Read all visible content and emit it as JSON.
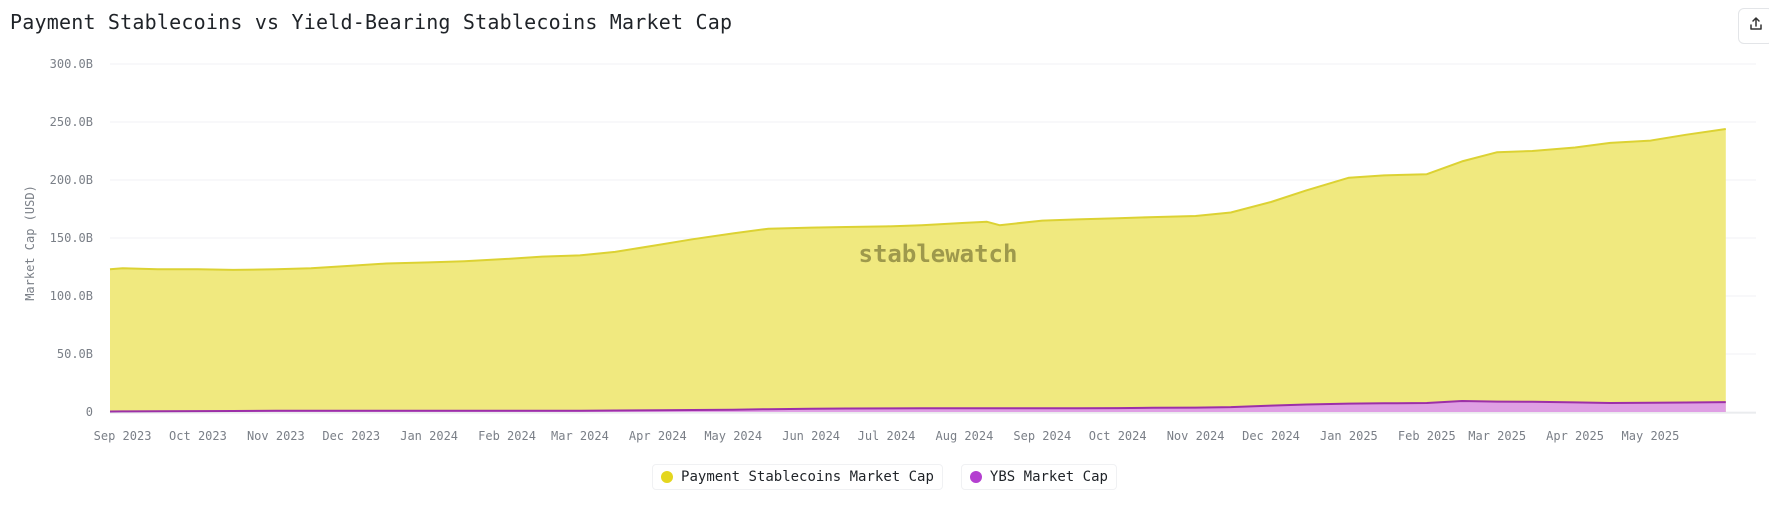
{
  "title": "Payment Stablecoins vs Yield-Bearing Stablecoins Market Cap",
  "share_icon": "share-icon",
  "watermark": "stablewatch",
  "colors": {
    "payment_line": "#dcd233",
    "payment_fill": "#f0e97f",
    "ybs_line": "#9c2fa8",
    "ybs_fill": "#dd9bea",
    "legend_payment": "#e4d61f",
    "legend_ybs": "#b43fd0",
    "grid": "#f1f2f4",
    "tick_text": "#7a7f87"
  },
  "chart_data": {
    "type": "area",
    "title": "Payment Stablecoins vs Yield-Bearing Stablecoins Market Cap",
    "xlabel": "",
    "ylabel": "Market Cap (USD)",
    "ylim": [
      0,
      300
    ],
    "y_unit": "B",
    "y_ticks": [
      "0",
      "50.0B",
      "100.0B",
      "150.0B",
      "200.0B",
      "250.0B",
      "300.0B"
    ],
    "x_ticks": [
      "Sep 2023",
      "Oct 2023",
      "Nov 2023",
      "Dec 2023",
      "Jan 2024",
      "Feb 2024",
      "Mar 2024",
      "Apr 2024",
      "May 2024",
      "Jun 2024",
      "Jul 2024",
      "Aug 2024",
      "Sep 2024",
      "Oct 2024",
      "Nov 2024",
      "Dec 2024",
      "Jan 2025",
      "Feb 2025",
      "Mar 2025",
      "Apr 2025",
      "May 2025"
    ],
    "grid": true,
    "legend_position": "bottom-center",
    "x": [
      "2023-08-27",
      "2023-09-01",
      "2023-09-15",
      "2023-10-01",
      "2023-10-15",
      "2023-11-01",
      "2023-11-15",
      "2023-12-01",
      "2023-12-15",
      "2024-01-01",
      "2024-01-15",
      "2024-02-01",
      "2024-02-15",
      "2024-03-01",
      "2024-03-15",
      "2024-04-01",
      "2024-04-15",
      "2024-05-01",
      "2024-05-15",
      "2024-06-01",
      "2024-06-15",
      "2024-07-01",
      "2024-07-15",
      "2024-08-01",
      "2024-08-10",
      "2024-08-15",
      "2024-09-01",
      "2024-09-15",
      "2024-10-01",
      "2024-10-15",
      "2024-11-01",
      "2024-11-15",
      "2024-12-01",
      "2024-12-15",
      "2025-01-01",
      "2025-01-15",
      "2025-02-01",
      "2025-02-15",
      "2025-03-01",
      "2025-03-15",
      "2025-04-01",
      "2025-04-15",
      "2025-05-01",
      "2025-05-15",
      "2025-05-31"
    ],
    "series": [
      {
        "name": "Payment Stablecoins Market Cap",
        "values": [
          123,
          124,
          123,
          123,
          122.5,
          123,
          124,
          126,
          128,
          129,
          130,
          132,
          134,
          135,
          138,
          144,
          149,
          154,
          158,
          159,
          159.5,
          160,
          161,
          163,
          164,
          161,
          165,
          166,
          167,
          168,
          169,
          172,
          181,
          191,
          202,
          204,
          205,
          216,
          224,
          225,
          228,
          232,
          234,
          239,
          244
        ]
      },
      {
        "name": "YBS Market Cap",
        "values": [
          0.4,
          0.5,
          0.6,
          0.8,
          0.9,
          1.0,
          1.0,
          1.1,
          1.1,
          1.0,
          1.0,
          1.0,
          1.0,
          1.1,
          1.3,
          1.5,
          1.7,
          2.0,
          2.4,
          2.8,
          3.0,
          3.1,
          3.2,
          3.3,
          3.3,
          3.2,
          3.2,
          3.2,
          3.4,
          3.6,
          3.8,
          4.2,
          5.5,
          6.5,
          7.2,
          7.5,
          7.8,
          9.5,
          9.0,
          8.8,
          8.3,
          7.8,
          7.9,
          8.2,
          8.5
        ]
      }
    ]
  }
}
